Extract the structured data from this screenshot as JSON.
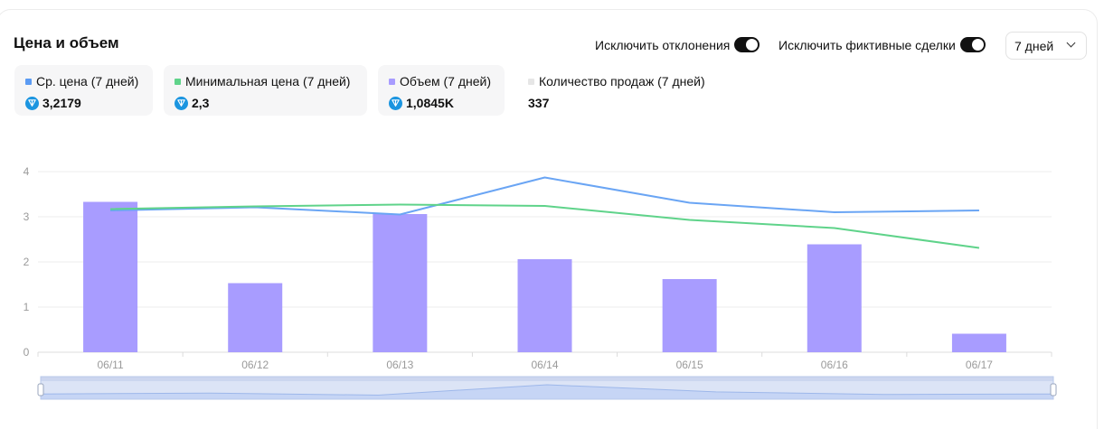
{
  "header": {
    "title": "Цена и объем",
    "toggle_outliers_label": "Исключить отклонения",
    "toggle_fake_label": "Исключить фиктивные сделки",
    "period_value": "7 дней"
  },
  "stats": [
    {
      "label": "Ср. цена (7 дней)",
      "value": "3,2179",
      "color": "#5b9bf3",
      "ton": true
    },
    {
      "label": "Минимальная цена (7 дней)",
      "value": "2,3",
      "color": "#5fd38a",
      "ton": true
    },
    {
      "label": "Объем (7 дней)",
      "value": "1,0845K",
      "color": "#a89cff",
      "ton": true
    },
    {
      "label": "Количество продаж (7 дней)",
      "value": "337",
      "color": "#e6e6e6",
      "ton": false
    }
  ],
  "icons": {
    "currency": "ton-icon",
    "dropdown": "chevron-down-icon"
  },
  "chart_data": {
    "type": "bar",
    "categories": [
      "06/11",
      "06/12",
      "06/13",
      "06/14",
      "06/15",
      "06/16",
      "06/17"
    ],
    "ylim": [
      0,
      4
    ],
    "yticks": [
      "0",
      "1",
      "2",
      "3",
      "4"
    ],
    "grid": true,
    "series": [
      {
        "type": "bar",
        "values": [
          3.33,
          1.53,
          3.06,
          2.06,
          1.62,
          2.39,
          0.41
        ],
        "color": "#a89cff"
      },
      {
        "type": "line",
        "values": [
          3.14,
          3.21,
          3.05,
          3.87,
          3.31,
          3.1,
          3.14
        ],
        "color": "#6aa5f4"
      },
      {
        "type": "line",
        "values": [
          3.17,
          3.23,
          3.27,
          3.24,
          2.93,
          2.75,
          2.31
        ],
        "color": "#5fd38a"
      }
    ]
  }
}
